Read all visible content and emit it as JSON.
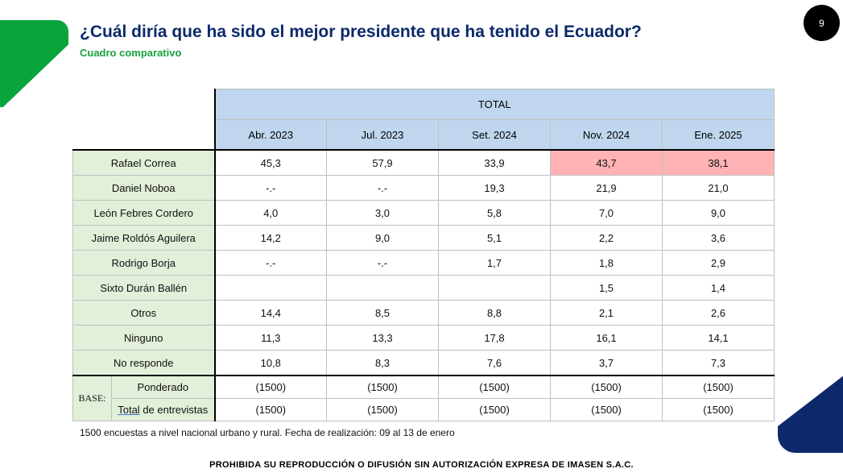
{
  "page_number": "9",
  "title": "¿Cuál diría que ha sido el mejor presidente que ha tenido el Ecuador?",
  "subtitle": "Cuadro comparativo",
  "table": {
    "group_header": "TOTAL",
    "periods": [
      "Abr. 2023",
      "Jul. 2023",
      "Set. 2024",
      "Nov. 2024",
      "Ene. 2025"
    ],
    "rows": [
      {
        "label": "Rafael Correa",
        "values": [
          "45,3",
          "57,9",
          "33,9",
          "43,7",
          "38,1"
        ]
      },
      {
        "label": "Daniel Noboa",
        "values": [
          "-.-",
          "-.-",
          "19,3",
          "21,9",
          "21,0"
        ]
      },
      {
        "label": "León Febres Cordero",
        "values": [
          "4,0",
          "3,0",
          "5,8",
          "7,0",
          "9,0"
        ]
      },
      {
        "label": "Jaime Roldós Aguilera",
        "values": [
          "14,2",
          "9,0",
          "5,1",
          "2,2",
          "3,6"
        ]
      },
      {
        "label": "Rodrigo Borja",
        "values": [
          "-.-",
          "-.-",
          "1,7",
          "1,8",
          "2,9"
        ]
      },
      {
        "label": "Sixto Durán Ballén",
        "values": [
          "",
          "",
          "",
          "1,5",
          "1,4"
        ]
      },
      {
        "label": "Otros",
        "values": [
          "14,4",
          "8,5",
          "8,8",
          "2,1",
          "2,6"
        ]
      },
      {
        "label": "Ninguno",
        "values": [
          "11,3",
          "13,3",
          "17,8",
          "16,1",
          "14,1"
        ]
      },
      {
        "label": "No responde",
        "values": [
          "10,8",
          "8,3",
          "7,6",
          "3,7",
          "7,3"
        ]
      }
    ],
    "highlight_color": "#ffb3b5",
    "base": {
      "label": "BASE:",
      "rows": [
        {
          "label": "Ponderado",
          "values": [
            "(1500)",
            "(1500)",
            "(1500)",
            "(1500)",
            "(1500)"
          ]
        },
        {
          "label_part1": "Total",
          "label_part2": " de entrevistas",
          "values": [
            "(1500)",
            "(1500)",
            "(1500)",
            "(1500)",
            "(1500)"
          ]
        }
      ]
    }
  },
  "note": "1500 encuestas a nivel nacional urbano y rural. Fecha de realización: 09 al 13 de enero",
  "footer": "PROHIBIDA SU REPRODUCCIÓN O DIFUSIÓN SIN AUTORIZACIÓN EXPRESA DE IMASEN S.A.C.",
  "colors": {
    "title": "#0c2a6b",
    "subtitle": "#1aa040",
    "header_bg": "#bfd6ee",
    "label_bg": "#e2efd9",
    "green_shape": "#0aa43c",
    "navy_shape": "#0c2a6b"
  }
}
